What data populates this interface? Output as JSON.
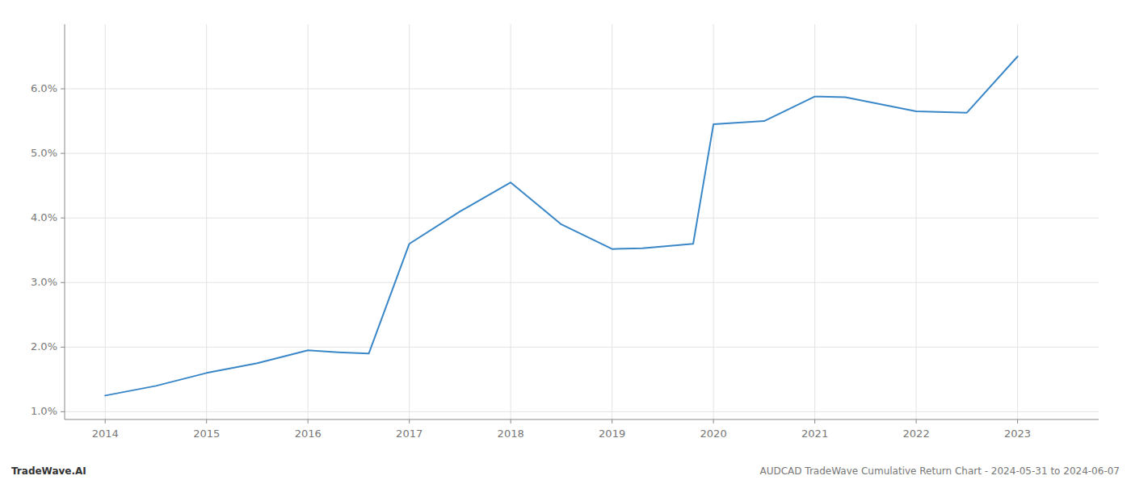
{
  "chart_data": {
    "type": "line",
    "x": [
      2014,
      2014.5,
      2015,
      2015.5,
      2016,
      2016.3,
      2016.6,
      2017,
      2017.5,
      2018,
      2018.5,
      2019,
      2019.3,
      2019.8,
      2020,
      2020.5,
      2021,
      2021.3,
      2022,
      2022.5,
      2023
    ],
    "values": [
      1.25,
      1.4,
      1.6,
      1.75,
      1.95,
      1.92,
      1.9,
      3.6,
      4.1,
      4.55,
      3.9,
      3.52,
      3.53,
      3.6,
      5.45,
      5.5,
      5.88,
      5.87,
      5.65,
      5.63,
      6.5
    ],
    "color": "#3a87c8",
    "xlim": [
      2013.6,
      2023.8
    ],
    "ylim": [
      0.88,
      7.0
    ],
    "xticks": [
      2014,
      2015,
      2016,
      2017,
      2018,
      2019,
      2020,
      2021,
      2022,
      2023
    ],
    "yticks": [
      {
        "value": 1.0,
        "label": "1.0%"
      },
      {
        "value": 2.0,
        "label": "2.0%"
      },
      {
        "value": 3.0,
        "label": "3.0%"
      },
      {
        "value": 4.0,
        "label": "4.0%"
      },
      {
        "value": 5.0,
        "label": "5.0%"
      },
      {
        "value": 6.0,
        "label": "6.0%"
      }
    ],
    "grid": true,
    "annotations": [
      "TradeWave.AI",
      "AUDCAD TradeWave Cumulative Return Chart - 2024-05-31 to 2024-06-07"
    ]
  }
}
